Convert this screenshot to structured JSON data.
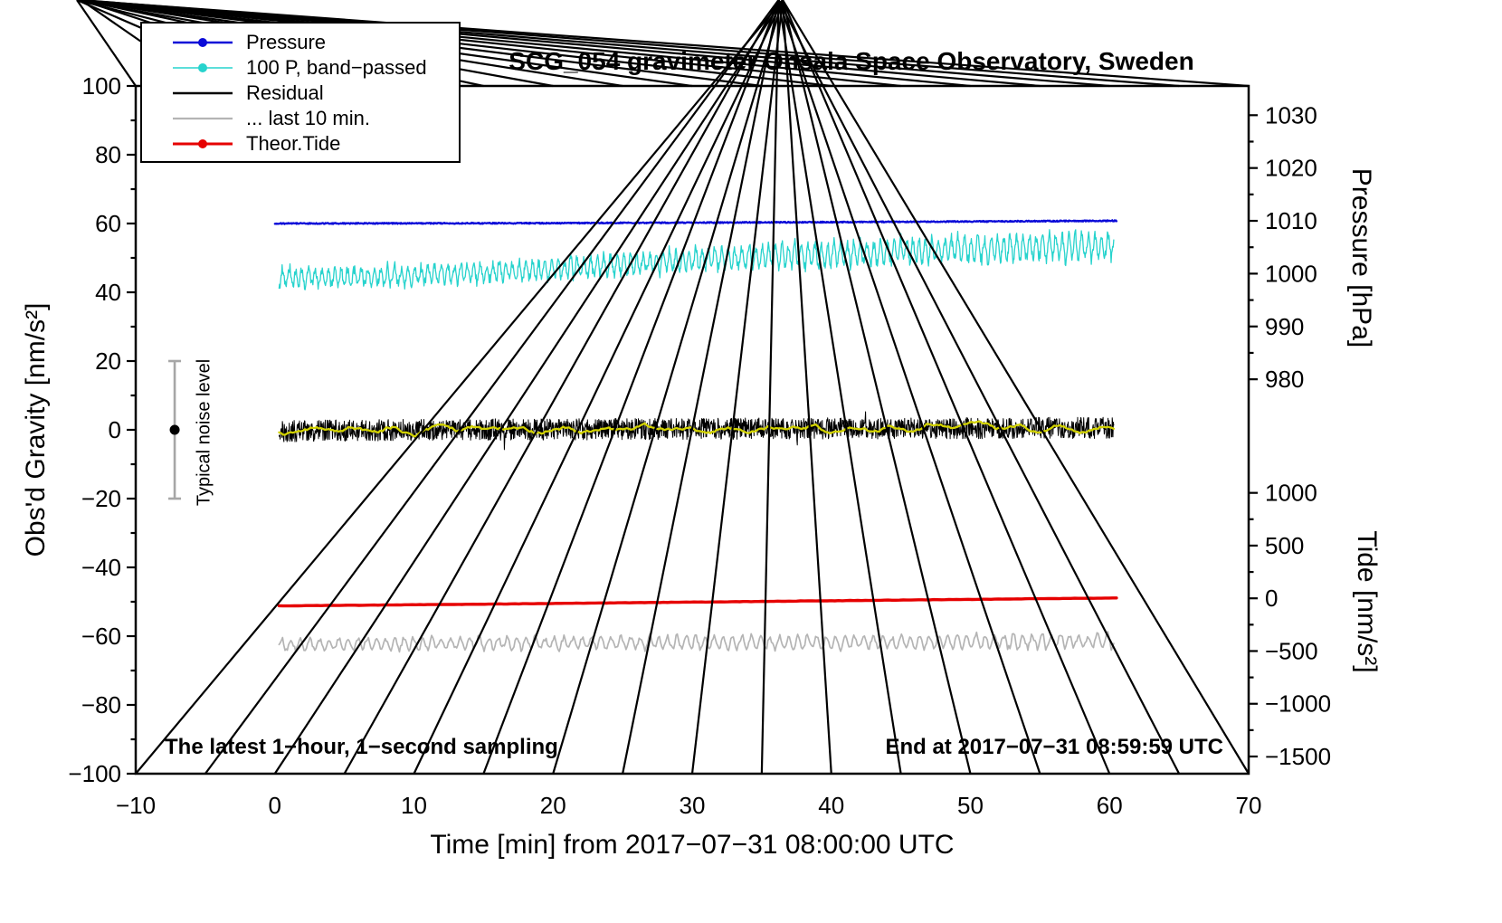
{
  "chart_data": {
    "type": "line",
    "title": "SCG_054 gravimeter Onsala Space Observatory, Sweden",
    "xlabel": "Time [min] from 2017−07−31 08:00:00 UTC",
    "ylabel_left": "Obs'd Gravity [nm/s²]",
    "ylabel_right_top": "Pressure [hPa]",
    "ylabel_right_bottom": "Tide [nm/s²]",
    "annotations": {
      "bottom_left": "The latest 1−hour, 1−second sampling",
      "bottom_right": "End at 2017−07−31 08:59:59 UTC",
      "noise_label": "Typical noise level"
    },
    "noise_bar": {
      "x": -7.2,
      "y_min": -20,
      "y_max": 20,
      "dot_y": 0,
      "color": "#a6a6a6",
      "dot_color": "#000000"
    },
    "axes": {
      "x": {
        "min": -10,
        "max": 70,
        "minor_step": 5,
        "major": [
          -10,
          0,
          10,
          20,
          30,
          40,
          50,
          60,
          70
        ],
        "labels": [
          "−10",
          "0",
          "10",
          "20",
          "30",
          "40",
          "50",
          "60",
          "70"
        ]
      },
      "y_left": {
        "min": -100,
        "max": 100,
        "minor_step": 10,
        "major": [
          100,
          80,
          60,
          40,
          20,
          0,
          -20,
          -40,
          -60,
          -80,
          -100
        ],
        "labels": [
          "100",
          "80",
          "60",
          "40",
          "20",
          "0",
          "−20",
          "−40",
          "−60",
          "−80",
          "−100"
        ]
      },
      "pressure": {
        "minor_step": 5,
        "ticks": [
          1030,
          1020,
          1010,
          1000,
          990,
          980
        ],
        "labels": [
          "1030",
          "1020",
          "1010",
          "1000",
          "990",
          "980"
        ],
        "anchors": {
          "v1": 1030,
          "g1": 91.5,
          "v2": 980,
          "g2": 14.7
        }
      },
      "tide": {
        "minor_step": 250,
        "ticks": [
          1000,
          500,
          0,
          -500,
          -1000,
          -1500
        ],
        "labels": [
          "1000",
          "500",
          "0",
          "−500",
          "−1000",
          "−1500"
        ],
        "anchors": {
          "v1": 0,
          "g1": -49,
          "v2": -1500,
          "g2": -95
        }
      }
    },
    "legend": [
      {
        "label": "Pressure",
        "color": "#0a0ad8",
        "dot": true,
        "width": 2.5
      },
      {
        "label": "100 P, band−passed",
        "color": "#27d3cd",
        "dot": true,
        "width": 1.6
      },
      {
        "label": "Residual",
        "color": "#000000",
        "dot": false,
        "width": 2.6
      },
      {
        "label": "... last 10 min.",
        "color": "#b4b4b4",
        "dot": false,
        "width": 2.2
      },
      {
        "label": "Theor.Tide",
        "color": "#e60000",
        "dot": true,
        "width": 3.0
      }
    ],
    "series": [
      {
        "name": "residual-last10",
        "color": "#b4b4b4",
        "width": 1.7,
        "style": "band",
        "noise": 0.5,
        "amp": 1.6,
        "amp_growth": 0.15,
        "freq": 0.8,
        "n": 700,
        "x_start": 0.3,
        "x_end": 60.3,
        "control": [
          [
            0.3,
            -62.5
          ],
          [
            15,
            -62.0
          ],
          [
            30,
            -61.9
          ],
          [
            45,
            -61.8
          ],
          [
            60.3,
            -61.3
          ]
        ]
      },
      {
        "name": "theor-tide",
        "color": "#e60000",
        "width": 3.4,
        "style": "smooth",
        "noise": 0.04,
        "n": 220,
        "x_start": 0.3,
        "x_end": 60.5,
        "control": [
          [
            0.3,
            -51.2
          ],
          [
            15,
            -50.7
          ],
          [
            30,
            -50.1
          ],
          [
            45,
            -49.5
          ],
          [
            60.5,
            -48.9
          ]
        ]
      },
      {
        "name": "pressure-bandpassed",
        "color": "#27d3cd",
        "width": 1.3,
        "style": "band",
        "noise": 0.9,
        "amp": 2.3,
        "amp_growth": 0.55,
        "freq": 0.5,
        "n": 1600,
        "x_start": 0.3,
        "x_end": 60.3,
        "control": [
          [
            0.3,
            44.3
          ],
          [
            6,
            44.3
          ],
          [
            12,
            45.3
          ],
          [
            18,
            46.3
          ],
          [
            24,
            47.8
          ],
          [
            30,
            49.4
          ],
          [
            36,
            50.4
          ],
          [
            42,
            51.4
          ],
          [
            48,
            52.4
          ],
          [
            54,
            53.0
          ],
          [
            60.3,
            53.5
          ]
        ]
      },
      {
        "name": "pressure",
        "color": "#0a0ad8",
        "width": 2.3,
        "style": "white",
        "noise": 0.16,
        "n": 1400,
        "x_start": 0.0,
        "x_end": 60.5,
        "control": [
          [
            0,
            60.0
          ],
          [
            20,
            60.1
          ],
          [
            40,
            60.4
          ],
          [
            60.5,
            60.8
          ]
        ]
      },
      {
        "name": "residual",
        "color": "#000000",
        "width": 1.0,
        "style": "white",
        "noise": 3.1,
        "spike": 0.015,
        "spike_amp": 4.5,
        "n": 2200,
        "x_start": 0.3,
        "x_end": 60.3,
        "control": [
          [
            0.3,
            -0.4
          ],
          [
            10,
            0.0
          ],
          [
            30,
            0.3
          ],
          [
            60.3,
            0.6
          ]
        ]
      },
      {
        "name": "residual-smoothed",
        "color": "#d2d200",
        "width": 2.3,
        "style": "wander",
        "noise": 1.6,
        "n": 420,
        "x_start": 0.3,
        "x_end": 60.3,
        "control": [
          [
            0.3,
            -0.4
          ],
          [
            20,
            0.1
          ],
          [
            40,
            0.3
          ],
          [
            60.3,
            0.6
          ]
        ]
      }
    ]
  }
}
